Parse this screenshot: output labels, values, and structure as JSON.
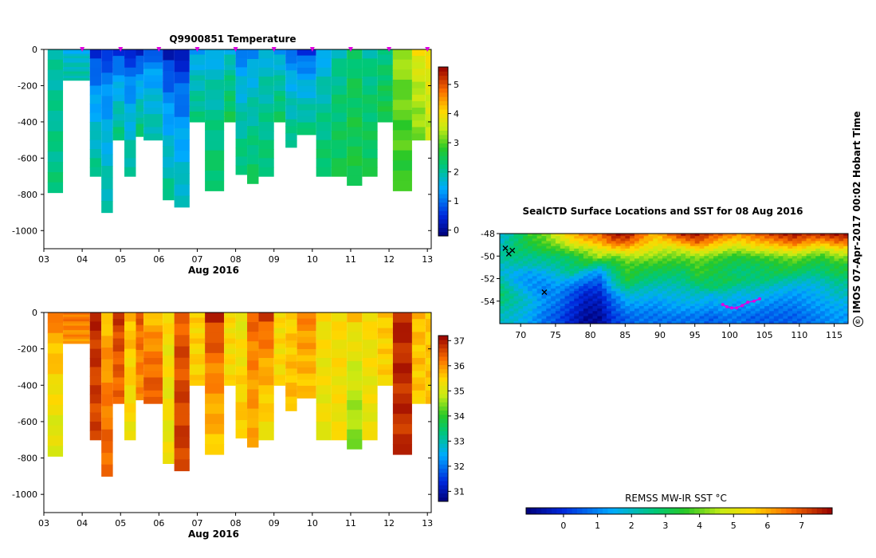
{
  "credit": {
    "symbol": "©",
    "text": "IMOS 07-Apr-2017 00:02 Hobart Time"
  },
  "chart_data": [
    {
      "id": "temperature",
      "type": "heatmap",
      "title": "Q9900851  Temperature",
      "xlabel": "Aug 2016",
      "ylabel": "",
      "x_ticks": [
        "03",
        "04",
        "05",
        "06",
        "07",
        "08",
        "09",
        "10",
        "11",
        "12",
        "13"
      ],
      "y_ticks": [
        0,
        -200,
        -400,
        -600,
        -800,
        -1000
      ],
      "ylim": [
        -1100,
        0
      ],
      "colorbar": {
        "min": -0.2,
        "max": 5.6,
        "ticks": [
          0,
          1,
          2,
          3,
          4,
          5
        ]
      },
      "profiles": [
        {
          "day": 3.1,
          "depth": 790,
          "surface": 1.9,
          "deep": 2.2
        },
        {
          "day": 3.5,
          "depth": 170,
          "surface": 1.5,
          "deep": 2.0
        },
        {
          "day": 4.2,
          "depth": 700,
          "surface": 0.4,
          "deep": 2.1
        },
        {
          "day": 4.5,
          "depth": 900,
          "surface": 0.6,
          "deep": 2.0
        },
        {
          "day": 4.8,
          "depth": 500,
          "surface": 0.5,
          "deep": 2.2
        },
        {
          "day": 5.1,
          "depth": 700,
          "surface": 0.4,
          "deep": 2.1
        },
        {
          "day": 5.4,
          "depth": 480,
          "surface": 0.3,
          "deep": 2.3
        },
        {
          "day": 5.6,
          "depth": 500,
          "surface": 0.8,
          "deep": 2.0
        },
        {
          "day": 6.1,
          "depth": 830,
          "surface": 0.2,
          "deep": 2.1
        },
        {
          "day": 6.4,
          "depth": 870,
          "surface": 0.2,
          "deep": 1.9
        },
        {
          "day": 6.8,
          "depth": 400,
          "surface": 1.3,
          "deep": 2.2
        },
        {
          "day": 7.2,
          "depth": 780,
          "surface": 1.5,
          "deep": 2.4
        },
        {
          "day": 7.7,
          "depth": 400,
          "surface": 1.6,
          "deep": 2.5
        },
        {
          "day": 8.0,
          "depth": 690,
          "surface": 1.0,
          "deep": 2.3
        },
        {
          "day": 8.3,
          "depth": 740,
          "surface": 1.2,
          "deep": 2.4
        },
        {
          "day": 8.6,
          "depth": 700,
          "surface": 1.6,
          "deep": 2.3
        },
        {
          "day": 9.0,
          "depth": 400,
          "surface": 1.3,
          "deep": 2.4
        },
        {
          "day": 9.3,
          "depth": 540,
          "surface": 0.9,
          "deep": 2.2
        },
        {
          "day": 9.6,
          "depth": 470,
          "surface": 0.6,
          "deep": 2.2
        },
        {
          "day": 10.1,
          "depth": 700,
          "surface": 1.4,
          "deep": 2.4
        },
        {
          "day": 10.5,
          "depth": 700,
          "surface": 1.9,
          "deep": 2.5
        },
        {
          "day": 10.9,
          "depth": 750,
          "surface": 2.3,
          "deep": 2.6
        },
        {
          "day": 11.3,
          "depth": 700,
          "surface": 2.0,
          "deep": 2.5
        },
        {
          "day": 11.7,
          "depth": 400,
          "surface": 2.1,
          "deep": 2.6
        },
        {
          "day": 12.1,
          "depth": 780,
          "surface": 3.4,
          "deep": 2.8
        },
        {
          "day": 12.6,
          "depth": 500,
          "surface": 3.9,
          "deep": 3.2
        },
        {
          "day": 12.95,
          "depth": 500,
          "surface": 4.0,
          "deep": 3.5
        }
      ],
      "surface_markers": [
        4.0,
        5.0,
        6.0,
        7.0,
        8.0,
        9.0,
        10.0,
        11.0,
        12.0,
        13.0
      ],
      "marker_color": "#e000e0"
    },
    {
      "id": "salinity",
      "type": "heatmap",
      "title": "",
      "xlabel": "Aug 2016",
      "ylabel": "",
      "x_ticks": [
        "03",
        "04",
        "05",
        "06",
        "07",
        "08",
        "09",
        "10",
        "11",
        "12",
        "13"
      ],
      "y_ticks": [
        0,
        -200,
        -400,
        -600,
        -800,
        -1000
      ],
      "ylim": [
        -1100,
        0
      ],
      "colorbar": {
        "min": 30.6,
        "max": 37.2,
        "ticks": [
          31,
          32,
          33,
          34,
          35,
          36,
          37
        ]
      },
      "profiles": [
        {
          "day": 3.1,
          "depth": 790,
          "surface": 36.2,
          "deep": 35.0
        },
        {
          "day": 3.5,
          "depth": 170,
          "surface": 36.3,
          "deep": 36.0
        },
        {
          "day": 4.2,
          "depth": 700,
          "surface": 36.9,
          "deep": 36.6
        },
        {
          "day": 4.5,
          "depth": 900,
          "surface": 35.6,
          "deep": 36.4
        },
        {
          "day": 4.8,
          "depth": 500,
          "surface": 36.8,
          "deep": 36.3
        },
        {
          "day": 5.1,
          "depth": 700,
          "surface": 35.8,
          "deep": 35.3
        },
        {
          "day": 5.4,
          "depth": 480,
          "surface": 36.5,
          "deep": 36.0
        },
        {
          "day": 5.6,
          "depth": 500,
          "surface": 35.6,
          "deep": 36.5
        },
        {
          "day": 6.1,
          "depth": 830,
          "surface": 35.4,
          "deep": 35.2
        },
        {
          "day": 6.4,
          "depth": 870,
          "surface": 36.4,
          "deep": 36.7
        },
        {
          "day": 6.8,
          "depth": 400,
          "surface": 35.5,
          "deep": 35.5
        },
        {
          "day": 7.2,
          "depth": 780,
          "surface": 36.9,
          "deep": 35.6
        },
        {
          "day": 7.7,
          "depth": 400,
          "surface": 35.4,
          "deep": 35.4
        },
        {
          "day": 8.0,
          "depth": 690,
          "surface": 35.1,
          "deep": 35.6
        },
        {
          "day": 8.3,
          "depth": 740,
          "surface": 36.4,
          "deep": 35.8
        },
        {
          "day": 8.6,
          "depth": 700,
          "surface": 36.7,
          "deep": 35.3
        },
        {
          "day": 9.0,
          "depth": 400,
          "surface": 35.4,
          "deep": 35.4
        },
        {
          "day": 9.3,
          "depth": 540,
          "surface": 35.5,
          "deep": 35.7
        },
        {
          "day": 9.6,
          "depth": 470,
          "surface": 36.2,
          "deep": 35.6
        },
        {
          "day": 10.1,
          "depth": 700,
          "surface": 35.4,
          "deep": 35.2
        },
        {
          "day": 10.5,
          "depth": 700,
          "surface": 35.4,
          "deep": 35.3
        },
        {
          "day": 10.9,
          "depth": 750,
          "surface": 35.6,
          "deep": 34.5
        },
        {
          "day": 11.3,
          "depth": 700,
          "surface": 35.4,
          "deep": 35.2
        },
        {
          "day": 11.7,
          "depth": 400,
          "surface": 35.6,
          "deep": 35.5
        },
        {
          "day": 12.1,
          "depth": 780,
          "surface": 36.9,
          "deep": 36.8
        },
        {
          "day": 12.6,
          "depth": 500,
          "surface": 35.7,
          "deep": 35.6
        },
        {
          "day": 12.95,
          "depth": 500,
          "surface": 35.6,
          "deep": 35.6
        }
      ]
    },
    {
      "id": "sst-map",
      "type": "heatmap",
      "title": "SealCTD Surface Locations and SST for 08 Aug 2016",
      "xlabel": "",
      "ylabel": "",
      "x_ticks": [
        70,
        75,
        80,
        85,
        90,
        95,
        100,
        105,
        110,
        115
      ],
      "y_ticks": [
        -48,
        -50,
        -52,
        -54
      ],
      "xlim": [
        67,
        117
      ],
      "ylim": [
        -56,
        -48
      ],
      "colorbar": {
        "label": "REMSS MW-IR SST °C",
        "min": -1.1,
        "max": 7.9,
        "ticks": [
          0,
          1,
          2,
          3,
          4,
          5,
          6,
          7
        ]
      },
      "sst_field": [
        [
          1.8,
          2.6,
          3.6,
          4.0,
          5.0,
          5.8,
          6.4,
          6.6,
          7.6,
          7.6,
          6.6,
          5.8,
          6.6,
          7.4,
          7.6,
          7.0,
          6.6,
          6.2,
          6.6,
          7.0,
          7.4,
          7.6,
          7.2,
          7.4,
          7.6
        ],
        [
          2.0,
          2.8,
          3.4,
          3.8,
          4.4,
          5.2,
          5.6,
          6.0,
          6.8,
          6.8,
          6.0,
          5.4,
          5.6,
          6.2,
          6.8,
          6.2,
          5.6,
          5.4,
          5.8,
          6.0,
          6.4,
          6.8,
          6.2,
          6.0,
          6.6
        ],
        [
          2.2,
          2.8,
          3.0,
          3.4,
          3.6,
          4.2,
          4.4,
          5.0,
          5.4,
          5.6,
          5.2,
          4.8,
          4.6,
          4.8,
          5.4,
          5.0,
          4.6,
          4.4,
          4.8,
          5.0,
          5.2,
          5.4,
          5.0,
          4.6,
          5.2
        ],
        [
          2.4,
          2.6,
          2.4,
          2.6,
          2.8,
          3.0,
          3.8,
          4.4,
          3.8,
          4.4,
          4.4,
          4.2,
          4.0,
          4.0,
          4.2,
          4.0,
          3.6,
          3.4,
          3.6,
          3.8,
          4.0,
          4.2,
          3.8,
          3.6,
          4.2
        ],
        [
          2.0,
          2.2,
          2.2,
          2.2,
          2.4,
          2.8,
          3.2,
          2.4,
          3.2,
          3.8,
          3.6,
          3.6,
          3.4,
          3.4,
          3.8,
          3.4,
          3.2,
          3.0,
          3.0,
          3.2,
          3.4,
          3.6,
          3.2,
          3.0,
          3.4
        ],
        [
          1.8,
          1.6,
          1.4,
          1.6,
          2.0,
          2.6,
          1.6,
          1.2,
          2.6,
          3.6,
          3.2,
          3.0,
          3.0,
          2.8,
          3.6,
          3.4,
          3.0,
          2.6,
          2.8,
          3.0,
          3.2,
          3.0,
          2.6,
          2.8,
          3.2
        ],
        [
          2.2,
          1.4,
          1.2,
          1.2,
          1.6,
          1.4,
          1.0,
          0.6,
          2.2,
          3.4,
          2.8,
          2.6,
          2.4,
          2.6,
          3.2,
          2.8,
          3.2,
          3.0,
          2.6,
          2.8,
          2.4,
          2.2,
          2.0,
          2.2,
          2.6
        ],
        [
          2.6,
          1.8,
          1.2,
          1.0,
          1.2,
          0.8,
          0.2,
          0.2,
          1.8,
          2.6,
          2.2,
          2.0,
          2.0,
          2.2,
          2.4,
          3.0,
          2.6,
          2.2,
          2.2,
          2.0,
          1.8,
          1.6,
          1.6,
          1.8,
          2.2
        ],
        [
          2.8,
          2.2,
          1.6,
          1.0,
          1.0,
          0.4,
          -0.2,
          -0.2,
          1.0,
          1.8,
          1.8,
          1.6,
          1.8,
          1.8,
          2.0,
          1.6,
          2.0,
          1.6,
          1.8,
          1.6,
          1.4,
          1.2,
          1.4,
          1.6,
          2.0
        ],
        [
          2.6,
          2.2,
          1.8,
          1.2,
          0.8,
          0.2,
          -0.4,
          -0.4,
          0.6,
          1.4,
          1.4,
          1.2,
          1.4,
          1.6,
          1.6,
          1.4,
          1.6,
          1.4,
          1.4,
          1.2,
          1.0,
          1.0,
          1.2,
          1.4,
          1.6
        ],
        [
          2.2,
          2.0,
          1.6,
          1.0,
          0.6,
          0.0,
          -0.6,
          -0.6,
          0.4,
          1.0,
          1.0,
          1.0,
          1.2,
          1.2,
          1.2,
          1.0,
          1.2,
          1.0,
          1.0,
          0.8,
          0.8,
          0.8,
          1.0,
          1.2,
          1.4
        ],
        [
          2.0,
          1.8,
          1.4,
          0.8,
          0.4,
          -0.2,
          -0.8,
          -0.8,
          0.2,
          0.6,
          0.8,
          0.8,
          0.8,
          0.8,
          0.8,
          0.6,
          0.8,
          0.8,
          0.6,
          0.6,
          0.6,
          0.6,
          0.8,
          1.0,
          1.2
        ]
      ],
      "track": [
        [
          99.0,
          -54.3
        ],
        [
          99.6,
          -54.5
        ],
        [
          100.3,
          -54.6
        ],
        [
          101.0,
          -54.6
        ],
        [
          101.8,
          -54.4
        ],
        [
          102.6,
          -54.1
        ],
        [
          103.5,
          -54.0
        ],
        [
          104.3,
          -53.8
        ]
      ],
      "track_color": "#e000e0",
      "cross_marks": [
        [
          67.8,
          -49.3
        ],
        [
          68.3,
          -49.8
        ],
        [
          68.8,
          -49.5
        ],
        [
          73.4,
          -53.2
        ]
      ]
    }
  ]
}
